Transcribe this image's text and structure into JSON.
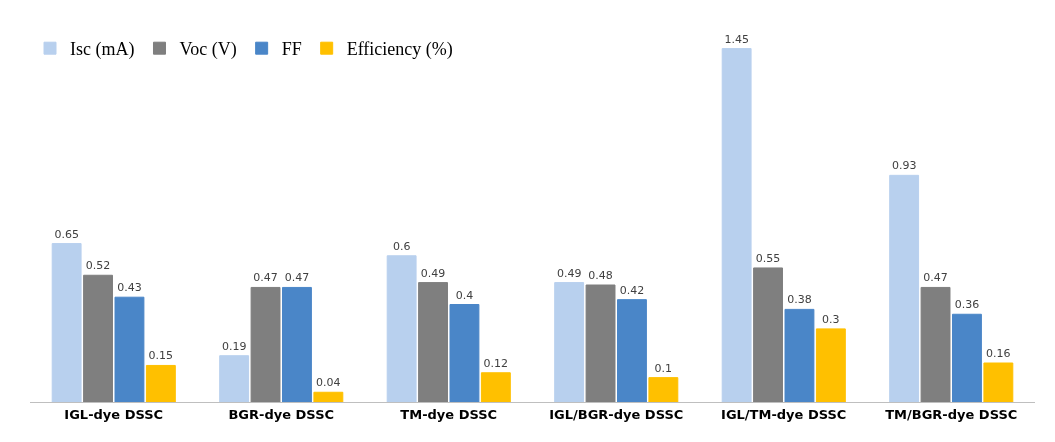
{
  "chart_data": {
    "type": "bar",
    "categories": [
      "IGL-dye DSSC",
      "BGR-dye DSSC",
      "TM-dye DSSC",
      "IGL/BGR-dye DSSC",
      "IGL/TM-dye DSSC",
      "TM/BGR-dye DSSC"
    ],
    "series": [
      {
        "name": "Isc (mA)",
        "color": "#b8d0ee",
        "values": [
          0.65,
          0.19,
          0.6,
          0.49,
          1.45,
          0.93
        ]
      },
      {
        "name": "Voc (V)",
        "color": "#7f7f7f",
        "values": [
          0.52,
          0.47,
          0.49,
          0.48,
          0.55,
          0.47
        ]
      },
      {
        "name": "FF",
        "color": "#4a86c8",
        "values": [
          0.43,
          0.47,
          0.4,
          0.42,
          0.38,
          0.36
        ]
      },
      {
        "name": "Efficiency (%)",
        "color": "#ffc000",
        "values": [
          0.15,
          0.04,
          0.12,
          0.1,
          0.3,
          0.16
        ]
      }
    ],
    "data_labels": true,
    "legend": "top left"
  }
}
